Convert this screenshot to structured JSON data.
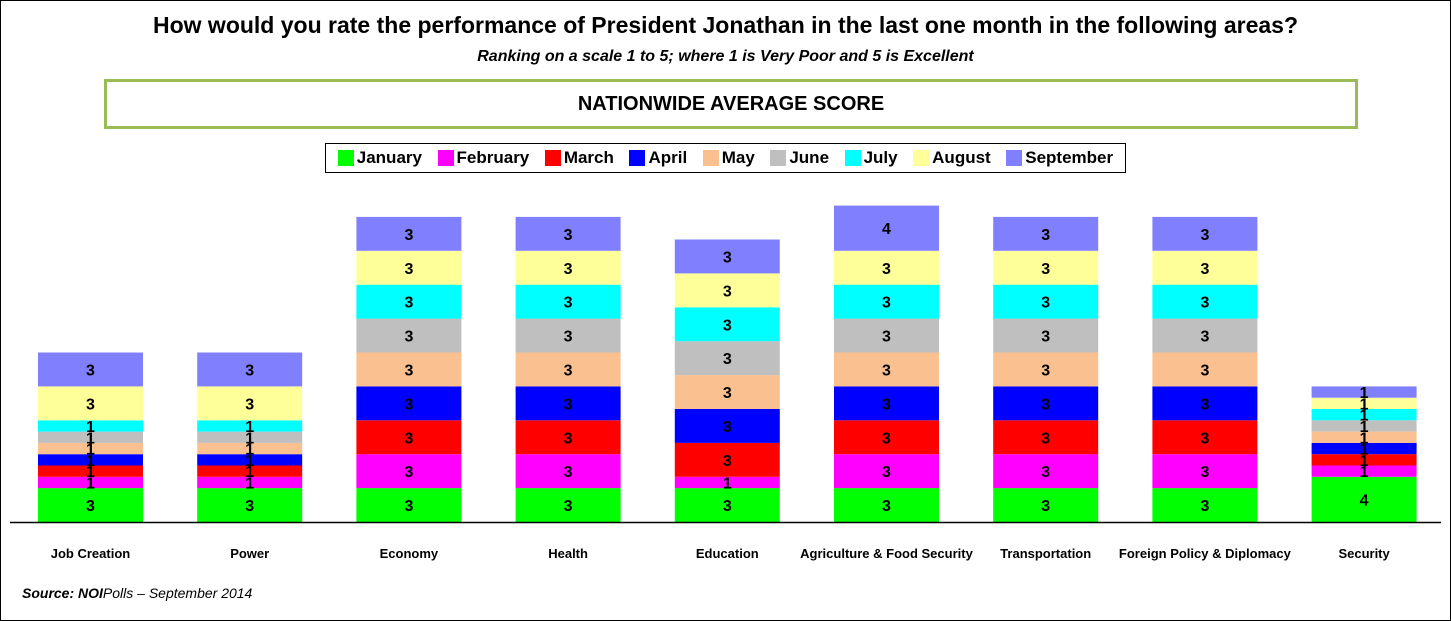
{
  "title": "How would you rate the performance of President Jonathan in the last one month in the  following areas?",
  "subtitle": "Ranking on a scale 1 to 5; where 1 is Very Poor and 5 is Excellent",
  "banner": "NATIONWIDE AVERAGE SCORE",
  "source": {
    "label": "Source:",
    "brand": "NOI",
    "rest": "Polls – September 2014"
  },
  "chart_data": {
    "type": "bar",
    "stacked": true,
    "legend_position": "top",
    "grid": false,
    "categories": [
      "Job Creation",
      "Power",
      "Economy",
      "Health",
      "Education",
      "Agriculture & Food Security",
      "Transportation",
      "Foreign Policy & Diplomacy",
      "Security"
    ],
    "series": [
      {
        "name": "January",
        "color": "#00ff00",
        "values": [
          3,
          3,
          3,
          3,
          3,
          3,
          3,
          3,
          4
        ]
      },
      {
        "name": "February",
        "color": "#ff00ff",
        "values": [
          1,
          1,
          3,
          3,
          1,
          3,
          3,
          3,
          1
        ]
      },
      {
        "name": "March",
        "color": "#ff0000",
        "values": [
          1,
          1,
          3,
          3,
          3,
          3,
          3,
          3,
          1
        ]
      },
      {
        "name": "April",
        "color": "#0000ff",
        "values": [
          1,
          1,
          3,
          3,
          3,
          3,
          3,
          3,
          1
        ]
      },
      {
        "name": "May",
        "color": "#fac090",
        "values": [
          1,
          1,
          3,
          3,
          3,
          3,
          3,
          3,
          1
        ]
      },
      {
        "name": "June",
        "color": "#bfbfbf",
        "values": [
          1,
          1,
          3,
          3,
          3,
          3,
          3,
          3,
          1
        ]
      },
      {
        "name": "July",
        "color": "#00ffff",
        "values": [
          1,
          1,
          3,
          3,
          3,
          3,
          3,
          3,
          1
        ]
      },
      {
        "name": "August",
        "color": "#ffff99",
        "values": [
          3,
          3,
          3,
          3,
          3,
          3,
          3,
          3,
          1
        ]
      },
      {
        "name": "September",
        "color": "#8080ff",
        "values": [
          3,
          3,
          3,
          3,
          3,
          4,
          3,
          3,
          1
        ]
      }
    ]
  }
}
